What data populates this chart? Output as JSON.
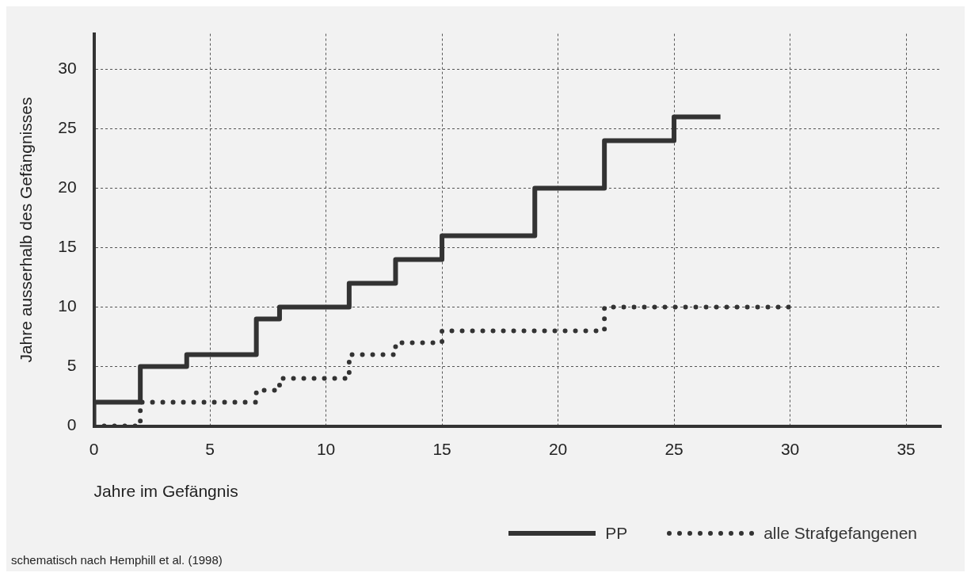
{
  "chart_data": {
    "type": "step",
    "xlabel": "Jahre im Gefängnis",
    "ylabel": "Jahre ausserhalb des Gefängnisses",
    "xlim": [
      0,
      36.5
    ],
    "xticks": [
      0,
      5,
      10,
      15,
      20,
      25,
      30,
      35
    ],
    "ylim": [
      0,
      33
    ],
    "yticks": [
      0,
      5,
      10,
      15,
      20,
      25,
      30
    ],
    "grid": true,
    "legend": "bottom right",
    "series": [
      {
        "name": "PP",
        "color": "#333333",
        "line_style": "solid",
        "x": [
          0,
          0,
          2,
          4,
          7,
          8,
          11,
          13,
          15,
          19,
          22,
          25,
          27
        ],
        "values": [
          0,
          2,
          5,
          6,
          9,
          10,
          12,
          14,
          16,
          20,
          24,
          26,
          26
        ]
      },
      {
        "name": "alle Strafgefangenen",
        "color": "#333333",
        "line_style": "dotted",
        "x": [
          0,
          2,
          7,
          8,
          11,
          13,
          15,
          22,
          30
        ],
        "values": [
          0,
          2,
          3,
          4,
          6,
          7,
          8,
          10,
          10
        ]
      }
    ],
    "annotations": [
      "schematisch nach Hemphill et al. (1998)"
    ]
  }
}
